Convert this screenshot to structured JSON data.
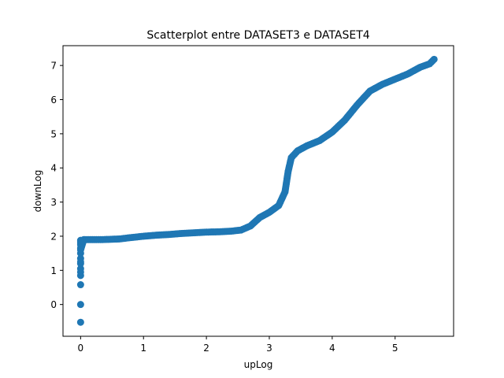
{
  "chart_data": {
    "type": "scatter",
    "title": "Scatterplot entre DATASET3 e DATASET4",
    "xlabel": "upLog",
    "ylabel": "downLog",
    "xlim": [
      -0.28,
      5.93
    ],
    "ylim": [
      -0.93,
      7.58
    ],
    "grid": false,
    "legend": "none",
    "marker_color": "#1f77b4",
    "x_ticks": [
      0,
      1,
      2,
      3,
      4,
      5
    ],
    "y_ticks": [
      0,
      1,
      2,
      3,
      4,
      5,
      6,
      7
    ],
    "x_tick_labels": [
      "0",
      "1",
      "2",
      "3",
      "4",
      "5"
    ],
    "y_tick_labels": [
      "0",
      "1",
      "2",
      "3",
      "4",
      "5",
      "6",
      "7"
    ],
    "series": [
      {
        "x": [
          0,
          0,
          0,
          0,
          0,
          0,
          0,
          0,
          0,
          0,
          0,
          0,
          0,
          0,
          0,
          0,
          0.05,
          0.07,
          0.25,
          0.32,
          0.48,
          0.62,
          0.75,
          0.9,
          1.0,
          1.2,
          1.4,
          1.6,
          1.8,
          2.0,
          2.2,
          2.4,
          2.55,
          2.7,
          2.85,
          3.0,
          3.15,
          3.25,
          3.3,
          3.35,
          3.45,
          3.6,
          3.8,
          4.0,
          4.2,
          4.4,
          4.6,
          4.8,
          5.0,
          5.2,
          5.4,
          5.55,
          5.62
        ],
        "y": [
          -0.52,
          0.0,
          0.58,
          0.85,
          1.05,
          1.2,
          1.35,
          1.5,
          1.65,
          1.75,
          1.8,
          1.85,
          1.88,
          0.95,
          1.25,
          1.6,
          1.9,
          1.9,
          1.9,
          1.9,
          1.91,
          1.92,
          1.95,
          1.98,
          2.0,
          2.03,
          2.05,
          2.08,
          2.1,
          2.12,
          2.13,
          2.15,
          2.18,
          2.3,
          2.55,
          2.7,
          2.9,
          3.3,
          3.9,
          4.3,
          4.5,
          4.65,
          4.8,
          5.05,
          5.4,
          5.85,
          6.25,
          6.45,
          6.6,
          6.75,
          6.95,
          7.05,
          7.18
        ]
      }
    ]
  }
}
